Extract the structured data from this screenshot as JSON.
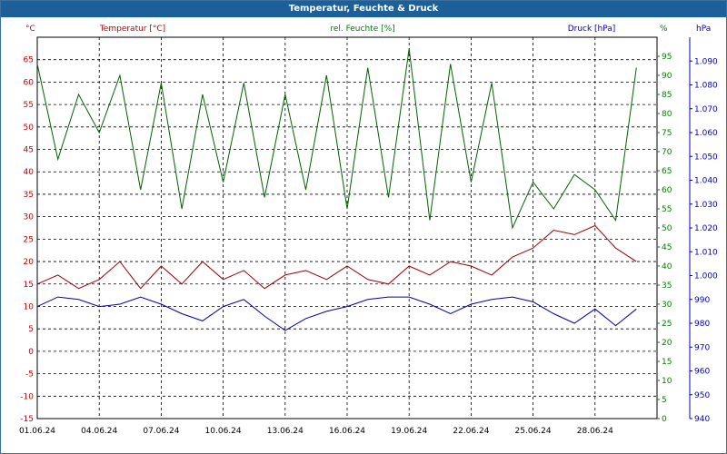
{
  "window": {
    "title": "Temperatur, Feuchte & Druck"
  },
  "chart_data": {
    "type": "line",
    "title": "Temperatur, Feuchte & Druck",
    "x_range": [
      "2024-06-01",
      "2024-07-01"
    ],
    "x_tick_labels": [
      "01.06.24",
      "04.06.24",
      "07.06.24",
      "10.06.24",
      "13.06.24",
      "16.06.24",
      "19.06.24",
      "22.06.24",
      "25.06.24",
      "28.06.24"
    ],
    "grid": true,
    "axes": {
      "temperature": {
        "label": "Temperatur [°C]",
        "unit": "°C",
        "ylim": [
          -15,
          70
        ],
        "ticks": [
          -15,
          -10,
          -5,
          0,
          5,
          10,
          15,
          20,
          25,
          30,
          35,
          40,
          45,
          50,
          55,
          60,
          65
        ],
        "color": "#c00000"
      },
      "humidity": {
        "label": "rel. Feuchte [%]",
        "unit": "%",
        "ylim": [
          0,
          100
        ],
        "ticks": [
          0,
          5,
          10,
          15,
          20,
          25,
          30,
          35,
          40,
          45,
          50,
          55,
          60,
          65,
          70,
          75,
          80,
          85,
          90,
          95
        ],
        "color": "#008000"
      },
      "pressure": {
        "label": "Druck [hPa]",
        "unit": "hPa",
        "ylim": [
          940,
          1100
        ],
        "ticks": [
          "940",
          "950",
          "960",
          "970",
          "980",
          "990",
          "1.000",
          "1.010",
          "1.020",
          "1.030",
          "1.040",
          "1.050",
          "1.060",
          "1.070",
          "1.080",
          "1.090"
        ],
        "color": "#0000cc"
      }
    },
    "series": [
      {
        "name": "Temperatur [°C]",
        "axis": "temperature",
        "color": "#a00000",
        "x": [
          "2024-06-01",
          "2024-06-02",
          "2024-06-03",
          "2024-06-04",
          "2024-06-05",
          "2024-06-06",
          "2024-06-07",
          "2024-06-08",
          "2024-06-09",
          "2024-06-10",
          "2024-06-11",
          "2024-06-12",
          "2024-06-13",
          "2024-06-14",
          "2024-06-15",
          "2024-06-16",
          "2024-06-17",
          "2024-06-18",
          "2024-06-19",
          "2024-06-20",
          "2024-06-21",
          "2024-06-22",
          "2024-06-23",
          "2024-06-24",
          "2024-06-25",
          "2024-06-26",
          "2024-06-27",
          "2024-06-28",
          "2024-06-29",
          "2024-06-30"
        ],
        "y": [
          15,
          17,
          14,
          16,
          20,
          14,
          19,
          15,
          20,
          16,
          18,
          14,
          17,
          18,
          16,
          19,
          16,
          15,
          19,
          17,
          20,
          19,
          17,
          21,
          23,
          27,
          26,
          28,
          23,
          20
        ]
      },
      {
        "name": "rel. Feuchte [%]",
        "axis": "humidity",
        "color": "#006400",
        "x": [
          "2024-06-01",
          "2024-06-02",
          "2024-06-03",
          "2024-06-04",
          "2024-06-05",
          "2024-06-06",
          "2024-06-07",
          "2024-06-08",
          "2024-06-09",
          "2024-06-10",
          "2024-06-11",
          "2024-06-12",
          "2024-06-13",
          "2024-06-14",
          "2024-06-15",
          "2024-06-16",
          "2024-06-17",
          "2024-06-18",
          "2024-06-19",
          "2024-06-20",
          "2024-06-21",
          "2024-06-22",
          "2024-06-23",
          "2024-06-24",
          "2024-06-25",
          "2024-06-26",
          "2024-06-27",
          "2024-06-28",
          "2024-06-29",
          "2024-06-30"
        ],
        "y": [
          93,
          68,
          85,
          75,
          90,
          60,
          88,
          55,
          85,
          62,
          88,
          58,
          85,
          60,
          90,
          55,
          92,
          58,
          97,
          52,
          93,
          62,
          88,
          50,
          62,
          55,
          64,
          60,
          52,
          92
        ]
      },
      {
        "name": "Druck [hPa]",
        "axis": "pressure",
        "color": "#0000aa",
        "x": [
          "2024-06-01",
          "2024-06-02",
          "2024-06-03",
          "2024-06-04",
          "2024-06-05",
          "2024-06-06",
          "2024-06-07",
          "2024-06-08",
          "2024-06-09",
          "2024-06-10",
          "2024-06-11",
          "2024-06-12",
          "2024-06-13",
          "2024-06-14",
          "2024-06-15",
          "2024-06-16",
          "2024-06-17",
          "2024-06-18",
          "2024-06-19",
          "2024-06-20",
          "2024-06-21",
          "2024-06-22",
          "2024-06-23",
          "2024-06-24",
          "2024-06-25",
          "2024-06-26",
          "2024-06-27",
          "2024-06-28",
          "2024-06-29",
          "2024-06-30"
        ],
        "y": [
          987,
          991,
          990,
          987,
          988,
          991,
          988,
          984,
          981,
          987,
          990,
          983,
          977,
          982,
          985,
          987,
          990,
          991,
          991,
          988,
          984,
          988,
          990,
          991,
          989,
          984,
          980,
          986,
          979,
          986
        ]
      }
    ]
  }
}
